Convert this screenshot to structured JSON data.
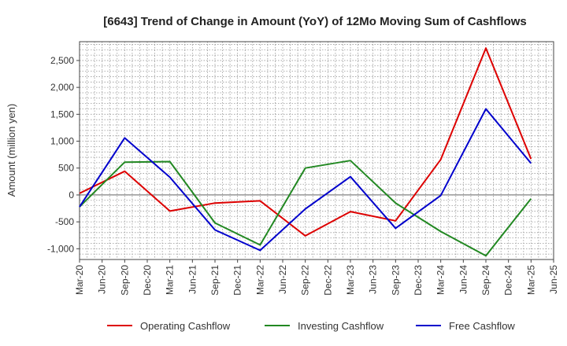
{
  "chart_data": {
    "type": "line",
    "title": "[6643]  Trend of Change in Amount (YoY) of 12Mo Moving Sum of Cashflows",
    "ylabel": "Amount (million yen)",
    "xlabel": "",
    "ylim": [
      -1200,
      2850
    ],
    "yticks": [
      -1000,
      -500,
      0,
      500,
      1000,
      1500,
      2000,
      2500
    ],
    "ytick_labels": [
      "-1,000",
      "-500",
      "0",
      "500",
      "1,000",
      "1,500",
      "2,000",
      "2,500"
    ],
    "x_ticks": [
      "Mar-20",
      "Jun-20",
      "Sep-20",
      "Dec-20",
      "Mar-21",
      "Jun-21",
      "Sep-21",
      "Dec-21",
      "Mar-22",
      "Jun-22",
      "Sep-22",
      "Dec-22",
      "Mar-23",
      "Jun-23",
      "Sep-23",
      "Dec-23",
      "Mar-24",
      "Jun-24",
      "Sep-24",
      "Dec-24",
      "Mar-25",
      "Jun-25"
    ],
    "x": [
      "Mar-20",
      "Sep-20",
      "Mar-21",
      "Sep-21",
      "Mar-22",
      "Sep-22",
      "Mar-23",
      "Sep-23",
      "Mar-24",
      "Sep-24",
      "Mar-25"
    ],
    "series": [
      {
        "name": "Operating Cashflow",
        "color": "#dd0000",
        "values": [
          30,
          440,
          -300,
          -150,
          -110,
          -760,
          -310,
          -480,
          660,
          2730,
          670
        ]
      },
      {
        "name": "Investing Cashflow",
        "color": "#228822",
        "values": [
          -220,
          610,
          620,
          -520,
          -930,
          500,
          640,
          -150,
          -680,
          -1130,
          -70
        ]
      },
      {
        "name": "Free Cashflow",
        "color": "#0000cc",
        "values": [
          -220,
          1060,
          330,
          -650,
          -1030,
          -260,
          340,
          -620,
          -10,
          1600,
          590
        ]
      }
    ],
    "grid": true,
    "legend": "bottom"
  }
}
